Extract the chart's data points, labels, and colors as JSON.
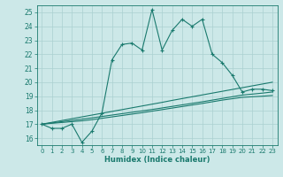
{
  "title": "",
  "xlabel": "Humidex (Indice chaleur)",
  "bg_color": "#cce8e8",
  "grid_color": "#aad0d0",
  "line_color": "#1a7a6e",
  "xlim": [
    -0.5,
    23.5
  ],
  "ylim": [
    15.5,
    25.5
  ],
  "yticks": [
    16,
    17,
    18,
    19,
    20,
    21,
    22,
    23,
    24,
    25
  ],
  "xticks": [
    0,
    1,
    2,
    3,
    4,
    5,
    6,
    7,
    8,
    9,
    10,
    11,
    12,
    13,
    14,
    15,
    16,
    17,
    18,
    19,
    20,
    21,
    22,
    23
  ],
  "main_series": [
    17.0,
    16.7,
    16.7,
    17.0,
    15.7,
    16.5,
    17.8,
    21.6,
    22.7,
    22.8,
    22.3,
    25.2,
    22.3,
    23.7,
    24.5,
    24.0,
    24.5,
    22.0,
    21.4,
    20.5,
    19.3,
    19.5,
    19.5,
    19.4
  ],
  "line1": [
    17.0,
    17.13,
    17.26,
    17.39,
    17.52,
    17.65,
    17.78,
    17.91,
    18.04,
    18.17,
    18.3,
    18.43,
    18.56,
    18.7,
    18.83,
    18.96,
    19.09,
    19.22,
    19.35,
    19.48,
    19.61,
    19.74,
    19.87,
    20.0
  ],
  "line2": [
    17.0,
    17.09,
    17.18,
    17.27,
    17.36,
    17.45,
    17.55,
    17.65,
    17.75,
    17.85,
    17.95,
    18.05,
    18.16,
    18.27,
    18.38,
    18.49,
    18.6,
    18.72,
    18.84,
    18.96,
    19.08,
    19.15,
    19.22,
    19.3
  ],
  "line3": [
    17.0,
    17.06,
    17.12,
    17.18,
    17.24,
    17.32,
    17.42,
    17.52,
    17.62,
    17.72,
    17.82,
    17.93,
    18.04,
    18.15,
    18.26,
    18.37,
    18.48,
    18.6,
    18.72,
    18.82,
    18.92,
    18.96,
    19.0,
    19.05
  ]
}
